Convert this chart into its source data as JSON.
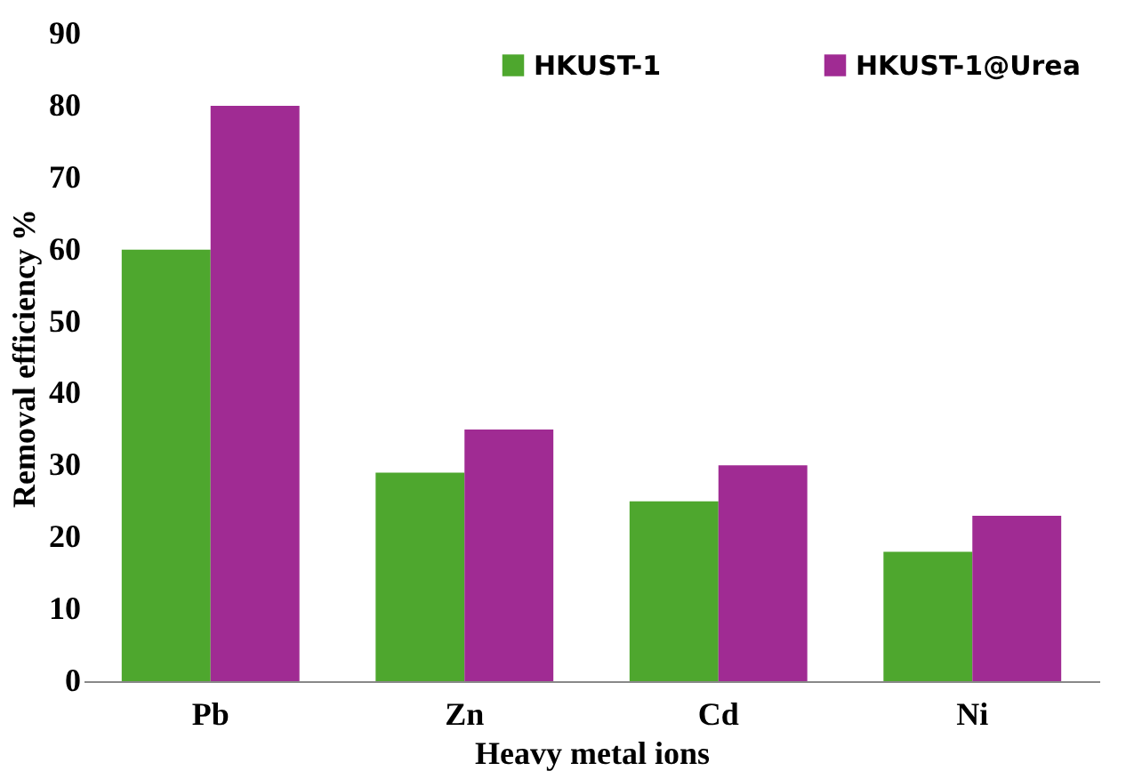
{
  "chart_data": {
    "type": "bar",
    "xlabel": "Heavy metal ions",
    "ylabel": "Removal efficiency %",
    "categories": [
      "Pb",
      "Zn",
      "Cd",
      "Ni"
    ],
    "series": [
      {
        "name": "HKUST-1",
        "color": "#4ea72e",
        "values": [
          60,
          29,
          25,
          18
        ]
      },
      {
        "name": "HKUST-1@Urea",
        "color": "#a02b93",
        "values": [
          80,
          35,
          30,
          23
        ]
      }
    ],
    "ylim": [
      0,
      90
    ],
    "yticks": [
      0,
      10,
      20,
      30,
      40,
      50,
      60,
      70,
      80,
      90
    ],
    "grid": false,
    "legend": "top right"
  }
}
